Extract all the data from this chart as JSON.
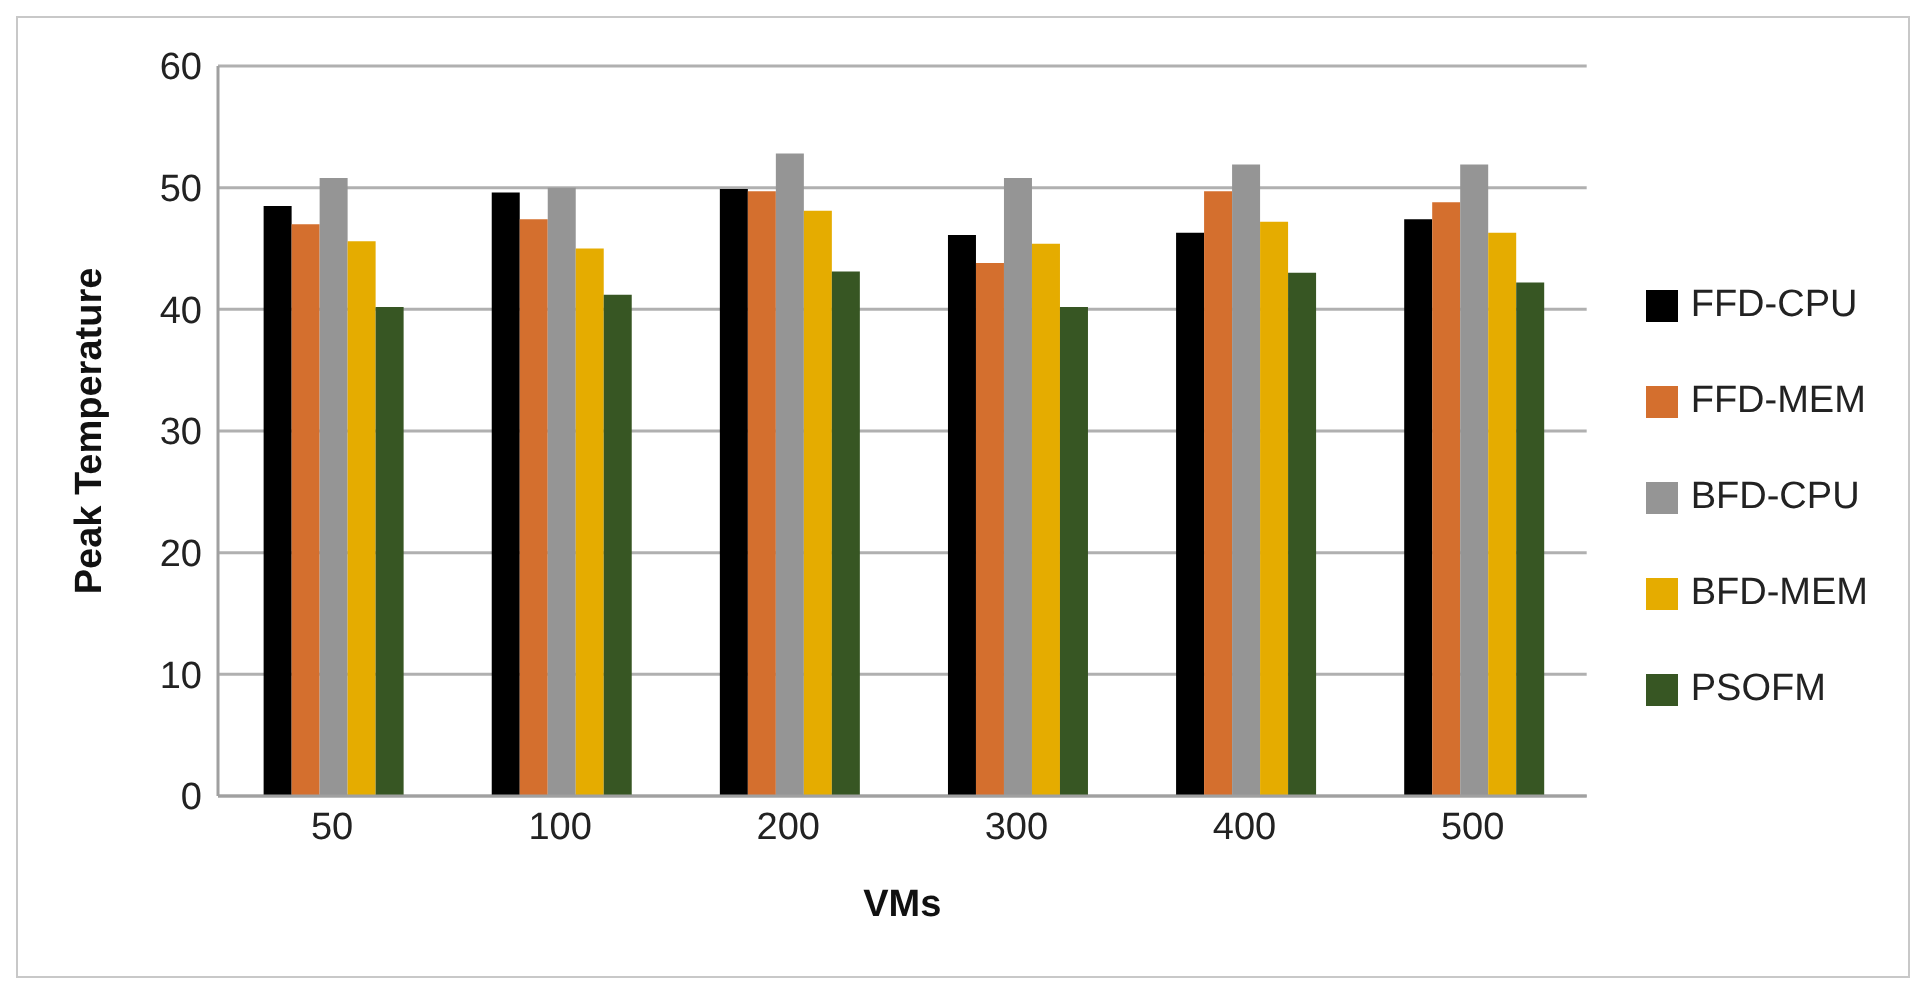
{
  "chart_data": {
    "type": "bar",
    "xlabel": "VMs",
    "ylabel": "Peak Temperature",
    "categories": [
      "50",
      "100",
      "200",
      "300",
      "400",
      "500"
    ],
    "series": [
      {
        "name": "FFD-CPU",
        "color": "#000000",
        "values": [
          48.5,
          49.6,
          49.9,
          46.1,
          46.3,
          47.4
        ]
      },
      {
        "name": "FFD-MEM",
        "color": "#d46f2e",
        "values": [
          47.0,
          47.4,
          49.7,
          43.8,
          49.7,
          48.8
        ]
      },
      {
        "name": "BFD-CPU",
        "color": "#959595",
        "values": [
          50.8,
          50.0,
          52.8,
          50.8,
          51.9,
          51.9
        ]
      },
      {
        "name": "BFD-MEM",
        "color": "#e5ac00",
        "values": [
          45.6,
          45.0,
          48.1,
          45.4,
          47.2,
          46.3
        ]
      },
      {
        "name": "PSOFM",
        "color": "#375623",
        "values": [
          40.2,
          41.2,
          43.1,
          40.2,
          43.0,
          42.2
        ]
      }
    ],
    "ylim": [
      0,
      60
    ],
    "yticks": [
      0,
      10,
      20,
      30,
      40,
      50,
      60
    ],
    "grid": "y",
    "legend": "right"
  }
}
